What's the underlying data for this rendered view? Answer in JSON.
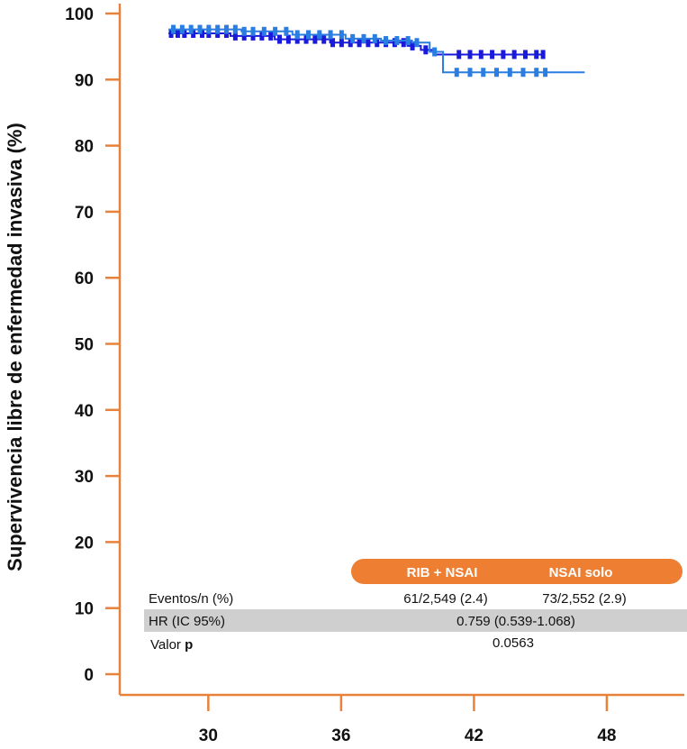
{
  "chart_data": {
    "type": "line",
    "ylabel": "Supervivencia libre de enfermedad invasiva (%)",
    "xlabel": "",
    "xlim": [
      26,
      51.5
    ],
    "ylim": [
      0,
      100
    ],
    "x_ticks": [
      30,
      36,
      42,
      48
    ],
    "y_ticks": [
      0,
      10,
      20,
      30,
      40,
      50,
      60,
      70,
      80,
      90,
      100
    ],
    "grid": false,
    "colors": {
      "axis": "#e8823a",
      "rib_nsai": "#1a1adb",
      "nsai_solo": "#2a7de1",
      "header_bg": "#ee7f32",
      "row_band": "#cfcfcf"
    },
    "series": [
      {
        "name": "RIB + NSAI",
        "color": "#1a1adb",
        "steps": [
          [
            28.2,
            97.0
          ],
          [
            31.0,
            96.6
          ],
          [
            33.0,
            96.1
          ],
          [
            35.5,
            95.6
          ],
          [
            39.0,
            95.1
          ],
          [
            39.6,
            94.5
          ],
          [
            40.2,
            93.8
          ],
          [
            45.2,
            93.8
          ]
        ],
        "censor_x": [
          28.3,
          28.6,
          28.9,
          29.3,
          29.7,
          30.0,
          30.4,
          30.8,
          31.2,
          31.6,
          32.0,
          32.4,
          32.8,
          33.2,
          33.6,
          34.0,
          34.4,
          34.8,
          35.2,
          35.6,
          36.0,
          36.4,
          36.8,
          37.2,
          37.6,
          38.0,
          38.4,
          38.8,
          39.2,
          39.8,
          41.3,
          41.8,
          42.3,
          42.8,
          43.3,
          43.8,
          44.3,
          44.8,
          45.1
        ]
      },
      {
        "name": "NSAI solo",
        "color": "#2a7de1",
        "steps": [
          [
            28.2,
            97.6
          ],
          [
            31.5,
            97.3
          ],
          [
            33.8,
            96.8
          ],
          [
            36.2,
            96.2
          ],
          [
            37.8,
            95.9
          ],
          [
            39.2,
            95.6
          ],
          [
            40.0,
            94.2
          ],
          [
            40.6,
            91.1
          ],
          [
            47.0,
            91.1
          ]
        ],
        "censor_x": [
          28.4,
          28.8,
          29.2,
          29.6,
          30.0,
          30.4,
          30.8,
          31.2,
          31.6,
          32.0,
          32.5,
          33.0,
          33.5,
          34.0,
          34.5,
          35.0,
          35.5,
          36.0,
          36.5,
          37.0,
          37.5,
          38.0,
          38.5,
          39.0,
          39.4,
          40.2,
          41.2,
          41.8,
          42.4,
          43.0,
          43.6,
          44.2,
          44.8,
          45.2
        ]
      }
    ],
    "table": {
      "columns": [
        "RIB + NSAI",
        "NSAI solo"
      ],
      "rows": [
        {
          "label": "Eventos/n (%)",
          "values": [
            "61/2,549 (2.4)",
            "73/2,552 (2.9)"
          ]
        },
        {
          "label": "HR (IC 95%)",
          "merged": "0.759 (0.539-1.068)"
        },
        {
          "label_plain": "Valor ",
          "label_bold": "p",
          "merged": "0.0563"
        }
      ]
    }
  }
}
